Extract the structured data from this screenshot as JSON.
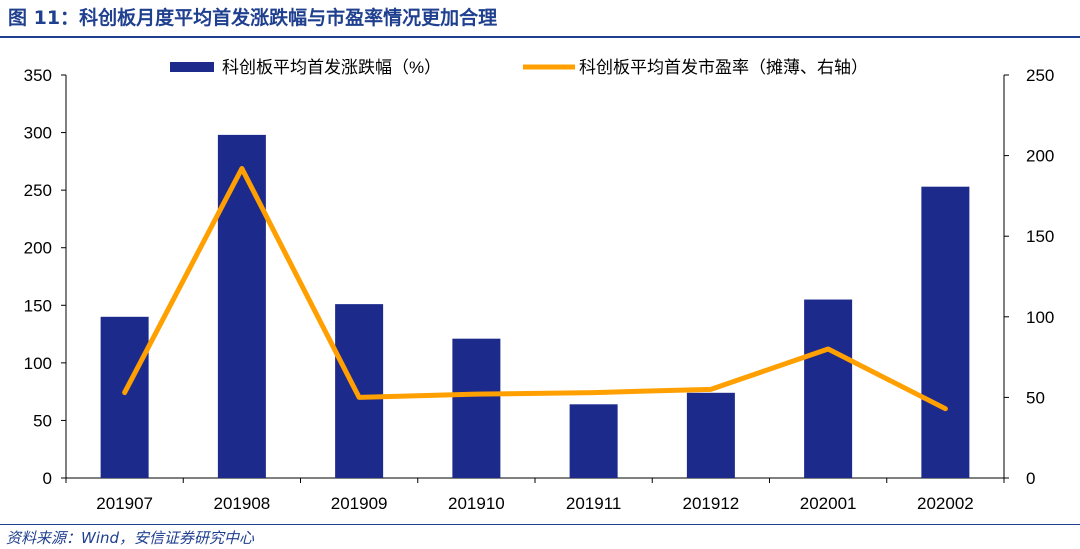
{
  "figure": {
    "number": "图 11：",
    "title": "科创板月度平均首发涨跌幅与市盈率情况更加合理"
  },
  "source": "资料来源：Wind，安信证券研究中心",
  "colors": {
    "bar": "#1c2a8c",
    "line": "#ffa000",
    "title": "#1f3f8f",
    "axis": "#000000"
  },
  "chart_data": {
    "type": "bar+line",
    "categories": [
      "201907",
      "201908",
      "201909",
      "201910",
      "201911",
      "201912",
      "202001",
      "202002"
    ],
    "series": [
      {
        "name": "科创板平均首发涨跌幅（%）",
        "type": "bar",
        "axis": "left",
        "values": [
          140,
          298,
          151,
          121,
          64,
          74,
          155,
          253
        ]
      },
      {
        "name": "科创板平均首发市盈率（摊薄、右轴）",
        "type": "line",
        "axis": "right",
        "values": [
          53,
          192,
          50,
          52,
          53,
          55,
          80,
          43
        ]
      }
    ],
    "y_left": {
      "min": 0,
      "max": 350,
      "ticks": [
        "0",
        "50",
        "100",
        "150",
        "200",
        "250",
        "300",
        "350"
      ]
    },
    "y_right": {
      "min": 0,
      "max": 250,
      "ticks": [
        "0",
        "50",
        "100",
        "150",
        "200",
        "250"
      ]
    },
    "legend_position": "top",
    "grid": false
  }
}
